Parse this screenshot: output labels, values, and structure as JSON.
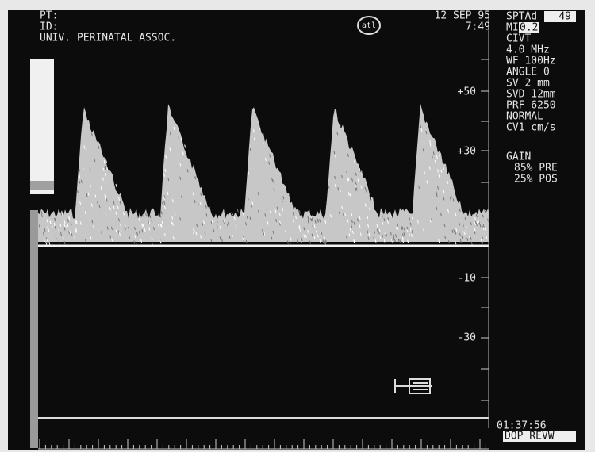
{
  "header": {
    "patient": "PT:",
    "id": "ID:",
    "institution": "UNIV. PERINATAL ASSOC.",
    "logo": "atl",
    "date": "12 SEP 95",
    "time": "7:49"
  },
  "scale": {
    "labels": [
      "+50",
      "+30",
      "-10",
      "-30"
    ]
  },
  "panel": {
    "sptad_label": "SPTAd",
    "sptad_value": "49",
    "mi_label": "MI",
    "mi_value": "0.2",
    "lines": [
      "CIVT",
      "4.0 MHz",
      "WF 100Hz",
      "ANGLE  0",
      "SV 2  mm",
      "SVD 12mm",
      "PRF 6250",
      "NORMAL",
      "CV1 cm/s"
    ],
    "gain_title": "GAIN",
    "gain_lines": [
      "85% PRE",
      "25% POS"
    ]
  },
  "footer": {
    "clock": "01:37:56",
    "mode": "DOP REVW"
  }
}
